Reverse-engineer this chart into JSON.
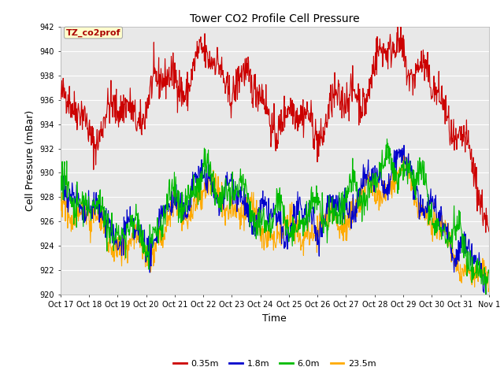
{
  "title": "Tower CO2 Profile Cell Pressure",
  "xlabel": "Time",
  "ylabel": "Cell Pressure (mBar)",
  "ylim": [
    920,
    942
  ],
  "xlim": [
    0,
    15
  ],
  "plot_bg_color": "#e8e8e8",
  "fig_bg_color": "#ffffff",
  "grid_color": "white",
  "legend_label": "TZ_co2prof",
  "series_labels": [
    "0.35m",
    "1.8m",
    "6.0m",
    "23.5m"
  ],
  "series_colors": [
    "#cc0000",
    "#0000cc",
    "#00bb00",
    "#ffaa00"
  ],
  "tick_labels": [
    "Oct 17",
    "Oct 18",
    "Oct 19",
    "Oct 20",
    "Oct 21",
    "Oct 22",
    "Oct 23",
    "Oct 24",
    "Oct 25",
    "Oct 26",
    "Oct 27",
    "Oct 28",
    "Oct 29",
    "Oct 30",
    "Oct 31",
    "Nov 1"
  ],
  "n_points": 960
}
